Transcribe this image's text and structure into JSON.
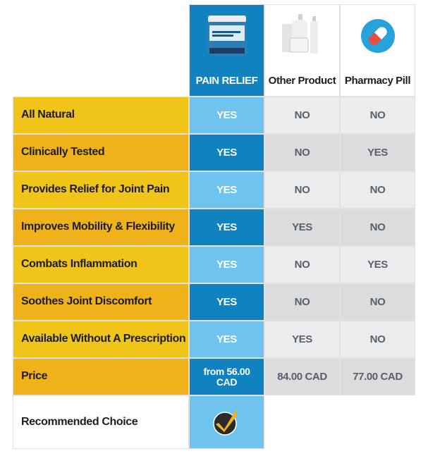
{
  "columns": [
    {
      "name": "PAIN RELIEF",
      "icon": "pain-relief-jar-icon"
    },
    {
      "name": "Other Product",
      "icon": "cosmetic-bottles-icon"
    },
    {
      "name": "Pharmacy Pill",
      "icon": "pill-capsule-icon"
    }
  ],
  "rows": [
    {
      "label": "All Natural",
      "values": [
        "YES",
        "NO",
        "NO"
      ]
    },
    {
      "label": "Clinically Tested",
      "values": [
        "YES",
        "NO",
        "YES"
      ]
    },
    {
      "label": "Provides Relief for Joint Pain",
      "values": [
        "YES",
        "NO",
        "NO"
      ]
    },
    {
      "label": "Improves Mobility & Flexibility",
      "values": [
        "YES",
        "YES",
        "NO"
      ]
    },
    {
      "label": "Combats Inflammation",
      "values": [
        "YES",
        "NO",
        "YES"
      ]
    },
    {
      "label": "Soothes Joint Discomfort",
      "values": [
        "YES",
        "NO",
        "NO"
      ]
    },
    {
      "label": "Available Without A Prescription",
      "values": [
        "YES",
        "YES",
        "NO"
      ]
    }
  ],
  "price": {
    "label": "Price",
    "values": [
      "from 56.00 CAD",
      "84.00 CAD",
      "77.00 CAD"
    ]
  },
  "recommended": {
    "label": "Recommended Choice",
    "icon": "checkmark-badge-icon"
  },
  "colors": {
    "yellow": "#f0c419",
    "yellow_alt": "#efb21a",
    "blue_light": "#6ec4ee",
    "blue_dark": "#0f82bf",
    "gray": "#ececec",
    "gray_alt": "#dcdcdc"
  }
}
